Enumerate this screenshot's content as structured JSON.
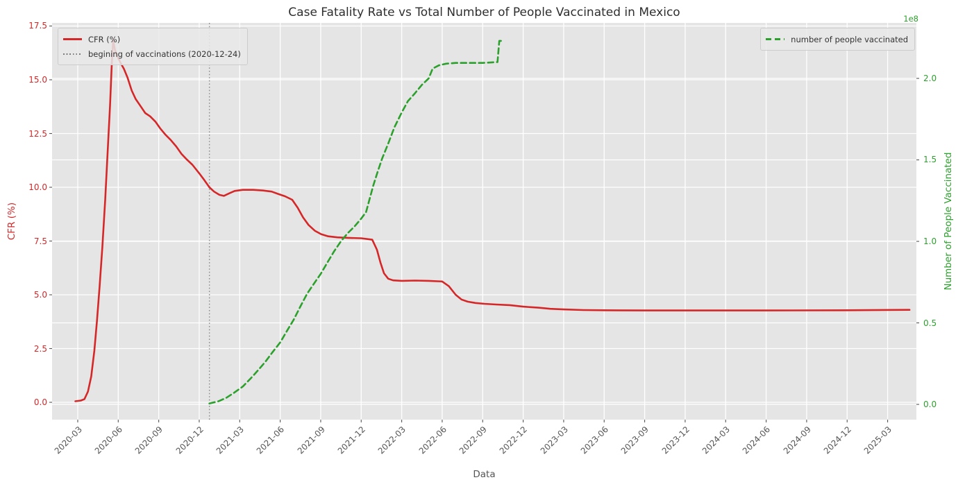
{
  "figure": {
    "title": "Case Fatality Rate vs Total Number of People Vaccinated in Mexico",
    "xlabel": "Data",
    "ylabel_left": "CFR (%)",
    "ylabel_right": "Number of People Vaccinated",
    "right_axis_multiplier": "1e8"
  },
  "legends": {
    "left": [
      {
        "label": "CFR (%)",
        "style": "solid",
        "color": "#d62728"
      },
      {
        "label": "begining of vaccinations (2020-12-24)",
        "style": "dotted",
        "color": "#7a7a7a"
      }
    ],
    "right": [
      {
        "label": "number of people vaccinated",
        "style": "dashed",
        "color": "#2ca02c"
      }
    ]
  },
  "colors": {
    "cfr_line": "#d62728",
    "vaccinated_line": "#2ca02c",
    "vline": "#8a8a8a",
    "axes_background": "#e5e5e5",
    "gridline": "#ffffff",
    "tick_label_x": "#555555",
    "title_text": "#2e2e2e"
  },
  "chart_data": {
    "type": "line",
    "title": "Case Fatality Rate vs Total Number of People Vaccinated in Mexico",
    "xlabel": "Data",
    "grid": true,
    "x_ticks": [
      "2020-03",
      "2020-06",
      "2020-09",
      "2020-12",
      "2021-03",
      "2021-06",
      "2021-09",
      "2021-12",
      "2022-03",
      "2022-06",
      "2022-09",
      "2022-12",
      "2023-03",
      "2023-06",
      "2023-09",
      "2023-12",
      "2024-03",
      "2024-06",
      "2024-09",
      "2024-12",
      "2025-03"
    ],
    "xlim": [
      "2020-01-04",
      "2025-05-05"
    ],
    "y_left": {
      "label": "CFR (%)",
      "ticks": [
        0.0,
        2.5,
        5.0,
        7.5,
        10.0,
        12.5,
        15.0,
        17.5
      ],
      "lim": [
        -0.806,
        17.645
      ],
      "color": "#d62728"
    },
    "y_right": {
      "label": "Number of People Vaccinated",
      "ticks": [
        0.0,
        0.5,
        1.0,
        1.5,
        2.0
      ],
      "lim": [
        -0.0936,
        2.3404
      ],
      "multiplier": "1e8",
      "color": "#2ca02c"
    },
    "vline": {
      "date": "2020-12-24",
      "label": "begining of vaccinations (2020-12-24)",
      "style": "dotted",
      "color": "#8a8a8a"
    },
    "series": [
      {
        "name": "CFR (%)",
        "axis": "left",
        "color": "#d62728",
        "style": "solid",
        "unit": "percent",
        "points": [
          [
            "2020-02-26",
            0.05
          ],
          [
            "2020-03-08",
            0.08
          ],
          [
            "2020-03-16",
            0.15
          ],
          [
            "2020-03-24",
            0.5
          ],
          [
            "2020-04-01",
            1.2
          ],
          [
            "2020-04-08",
            2.4
          ],
          [
            "2020-04-14",
            3.8
          ],
          [
            "2020-04-20",
            5.4
          ],
          [
            "2020-04-26",
            7.2
          ],
          [
            "2020-05-02",
            9.4
          ],
          [
            "2020-05-08",
            11.8
          ],
          [
            "2020-05-13",
            13.8
          ],
          [
            "2020-05-17",
            15.8
          ],
          [
            "2020-05-20",
            16.85
          ],
          [
            "2020-05-24",
            16.4
          ],
          [
            "2020-05-29",
            16.1
          ],
          [
            "2020-06-06",
            15.8
          ],
          [
            "2020-06-14",
            15.5
          ],
          [
            "2020-06-22",
            15.1
          ],
          [
            "2020-07-01",
            14.5
          ],
          [
            "2020-07-10",
            14.1
          ],
          [
            "2020-07-20",
            13.8
          ],
          [
            "2020-08-01",
            13.45
          ],
          [
            "2020-08-12",
            13.3
          ],
          [
            "2020-08-24",
            13.05
          ],
          [
            "2020-09-04",
            12.75
          ],
          [
            "2020-09-16",
            12.45
          ],
          [
            "2020-09-28",
            12.2
          ],
          [
            "2020-10-10",
            11.9
          ],
          [
            "2020-10-22",
            11.55
          ],
          [
            "2020-11-03",
            11.3
          ],
          [
            "2020-11-16",
            11.05
          ],
          [
            "2020-12-01",
            10.65
          ],
          [
            "2020-12-12",
            10.35
          ],
          [
            "2020-12-24",
            10.0
          ],
          [
            "2021-01-04",
            9.8
          ],
          [
            "2021-01-16",
            9.65
          ],
          [
            "2021-01-26",
            9.6
          ],
          [
            "2021-02-08",
            9.72
          ],
          [
            "2021-02-20",
            9.83
          ],
          [
            "2021-03-08",
            9.88
          ],
          [
            "2021-04-01",
            9.88
          ],
          [
            "2021-04-24",
            9.85
          ],
          [
            "2021-05-12",
            9.8
          ],
          [
            "2021-05-28",
            9.68
          ],
          [
            "2021-06-12",
            9.58
          ],
          [
            "2021-06-28",
            9.42
          ],
          [
            "2021-07-10",
            9.05
          ],
          [
            "2021-07-22",
            8.6
          ],
          [
            "2021-08-04",
            8.25
          ],
          [
            "2021-08-18",
            7.98
          ],
          [
            "2021-09-02",
            7.82
          ],
          [
            "2021-09-18",
            7.72
          ],
          [
            "2021-10-08",
            7.67
          ],
          [
            "2021-11-01",
            7.65
          ],
          [
            "2021-12-01",
            7.63
          ],
          [
            "2021-12-26",
            7.56
          ],
          [
            "2022-01-06",
            7.1
          ],
          [
            "2022-01-14",
            6.5
          ],
          [
            "2022-01-22",
            6.0
          ],
          [
            "2022-02-01",
            5.75
          ],
          [
            "2022-02-12",
            5.67
          ],
          [
            "2022-03-01",
            5.65
          ],
          [
            "2022-04-01",
            5.66
          ],
          [
            "2022-05-01",
            5.65
          ],
          [
            "2022-06-01",
            5.62
          ],
          [
            "2022-06-16",
            5.4
          ],
          [
            "2022-07-01",
            5.0
          ],
          [
            "2022-07-14",
            4.78
          ],
          [
            "2022-07-28",
            4.68
          ],
          [
            "2022-08-15",
            4.62
          ],
          [
            "2022-09-05",
            4.58
          ],
          [
            "2022-10-01",
            4.55
          ],
          [
            "2022-11-01",
            4.52
          ],
          [
            "2022-12-01",
            4.45
          ],
          [
            "2023-01-05",
            4.4
          ],
          [
            "2023-02-01",
            4.35
          ],
          [
            "2023-03-01",
            4.32
          ],
          [
            "2023-04-15",
            4.29
          ],
          [
            "2023-06-01",
            4.28
          ],
          [
            "2023-09-01",
            4.27
          ],
          [
            "2024-01-01",
            4.27
          ],
          [
            "2024-06-01",
            4.27
          ],
          [
            "2024-12-01",
            4.28
          ],
          [
            "2025-04-20",
            4.3
          ]
        ]
      },
      {
        "name": "number of people vaccinated",
        "axis": "right",
        "color": "#2ca02c",
        "style": "dashed",
        "unit": "1e8 people",
        "points": [
          [
            "2020-12-24",
            0.005
          ],
          [
            "2021-01-15",
            0.02
          ],
          [
            "2021-02-01",
            0.04
          ],
          [
            "2021-02-18",
            0.07
          ],
          [
            "2021-03-08",
            0.11
          ],
          [
            "2021-03-26",
            0.16
          ],
          [
            "2021-04-12",
            0.21
          ],
          [
            "2021-04-28",
            0.26
          ],
          [
            "2021-05-14",
            0.32
          ],
          [
            "2021-06-01",
            0.38
          ],
          [
            "2021-06-16",
            0.45
          ],
          [
            "2021-07-01",
            0.52
          ],
          [
            "2021-07-16",
            0.6
          ],
          [
            "2021-08-01",
            0.68
          ],
          [
            "2021-08-16",
            0.74
          ],
          [
            "2021-09-01",
            0.8
          ],
          [
            "2021-09-16",
            0.87
          ],
          [
            "2021-10-01",
            0.94
          ],
          [
            "2021-10-16",
            1.0
          ],
          [
            "2021-11-01",
            1.05
          ],
          [
            "2021-11-16",
            1.09
          ],
          [
            "2021-12-01",
            1.14
          ],
          [
            "2021-12-12",
            1.18
          ],
          [
            "2021-12-20",
            1.26
          ],
          [
            "2021-12-28",
            1.34
          ],
          [
            "2022-01-08",
            1.43
          ],
          [
            "2022-01-18",
            1.51
          ],
          [
            "2022-02-01",
            1.6
          ],
          [
            "2022-02-15",
            1.7
          ],
          [
            "2022-03-01",
            1.79
          ],
          [
            "2022-03-15",
            1.86
          ],
          [
            "2022-04-01",
            1.91
          ],
          [
            "2022-04-16",
            1.96
          ],
          [
            "2022-05-01",
            2.0
          ],
          [
            "2022-05-10",
            2.06
          ],
          [
            "2022-05-24",
            2.08
          ],
          [
            "2022-06-10",
            2.09
          ],
          [
            "2022-07-01",
            2.095
          ],
          [
            "2022-08-01",
            2.095
          ],
          [
            "2022-09-01",
            2.095
          ],
          [
            "2022-10-04",
            2.1
          ],
          [
            "2022-10-08",
            2.23
          ],
          [
            "2022-10-14",
            2.23
          ]
        ]
      }
    ]
  }
}
